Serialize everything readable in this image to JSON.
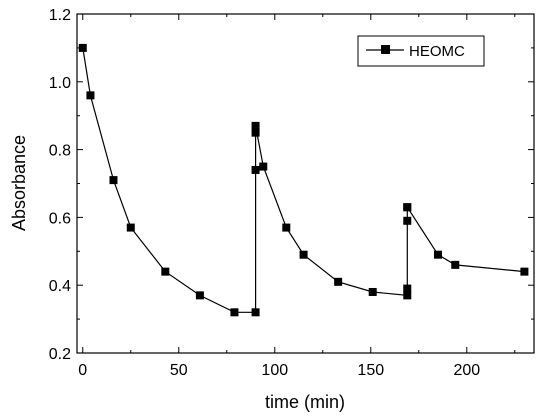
{
  "chart_data": {
    "type": "line",
    "xlabel": "time (min)",
    "ylabel": "Absorbance",
    "xlim": [
      -3,
      235
    ],
    "ylim": [
      0.2,
      1.2
    ],
    "x_ticks": [
      0,
      50,
      100,
      150,
      200
    ],
    "y_ticks": [
      0.2,
      0.4,
      0.6,
      0.8,
      1.0,
      1.2
    ],
    "y_tick_labels": [
      "0.2",
      "0.4",
      "0.6",
      "0.8",
      "1.0",
      "1.2"
    ],
    "legend_position": "top-right",
    "grid": false,
    "series": [
      {
        "name": "HEOMC",
        "color": "#000000",
        "marker": "square",
        "x": [
          0,
          4,
          16,
          25,
          43,
          61,
          79,
          90,
          90,
          90,
          90,
          94,
          106,
          115,
          133,
          151,
          169,
          169,
          169,
          169,
          169,
          185,
          194,
          230
        ],
        "y": [
          1.1,
          0.96,
          0.71,
          0.57,
          0.44,
          0.37,
          0.32,
          0.32,
          0.74,
          0.85,
          0.87,
          0.75,
          0.57,
          0.49,
          0.41,
          0.38,
          0.37,
          0.39,
          0.59,
          0.63,
          0.63,
          0.49,
          0.46,
          0.44
        ]
      }
    ]
  }
}
